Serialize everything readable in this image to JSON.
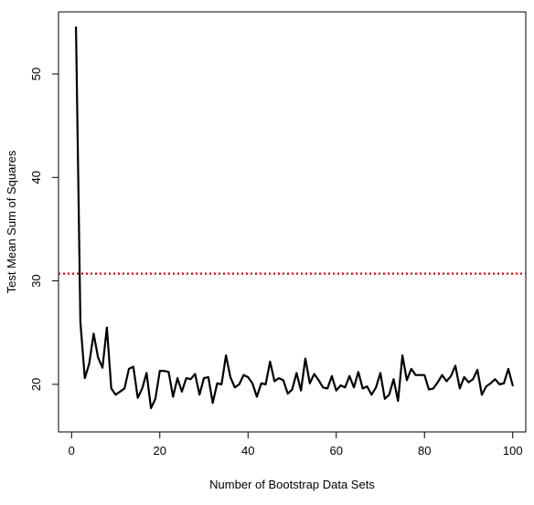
{
  "chart_data": {
    "type": "line",
    "title": "",
    "xlabel": "Number of Bootstrap Data Sets",
    "ylabel": "Test Mean Sum of Squares",
    "xlim": [
      -2.96,
      102.96
    ],
    "ylim": [
      15.4,
      56.0
    ],
    "xticks": [
      0,
      20,
      40,
      60,
      80,
      100
    ],
    "yticks": [
      20,
      30,
      40,
      50
    ],
    "grid": false,
    "legend": "none",
    "reference_line": {
      "y": 30.7,
      "style": "dotted",
      "color": "#dd0000"
    },
    "series": [
      {
        "color": "#000000",
        "x": [
          1,
          2,
          3,
          4,
          5,
          6,
          7,
          8,
          9,
          10,
          11,
          12,
          13,
          14,
          15,
          16,
          17,
          18,
          19,
          20,
          21,
          22,
          23,
          24,
          25,
          26,
          27,
          28,
          29,
          30,
          31,
          32,
          33,
          34,
          35,
          36,
          37,
          38,
          39,
          40,
          41,
          42,
          43,
          44,
          45,
          46,
          47,
          48,
          49,
          50,
          51,
          52,
          53,
          54,
          55,
          56,
          57,
          58,
          59,
          60,
          61,
          62,
          63,
          64,
          65,
          66,
          67,
          68,
          69,
          70,
          71,
          72,
          73,
          74,
          75,
          76,
          77,
          78,
          79,
          80,
          81,
          82,
          83,
          84,
          85,
          86,
          87,
          88,
          89,
          90,
          91,
          92,
          93,
          94,
          95,
          96,
          97,
          98,
          99,
          100
        ],
        "values": [
          54.5,
          26.0,
          20.6,
          22.0,
          24.9,
          22.6,
          21.6,
          25.5,
          19.6,
          19.0,
          19.3,
          19.6,
          21.5,
          21.7,
          18.7,
          19.6,
          21.1,
          17.7,
          18.6,
          21.3,
          21.3,
          21.2,
          18.8,
          20.6,
          19.3,
          20.6,
          20.5,
          21.0,
          19.0,
          20.6,
          20.7,
          18.2,
          20.1,
          20.0,
          22.8,
          20.7,
          19.7,
          20.0,
          20.9,
          20.7,
          20.1,
          18.8,
          20.1,
          20.0,
          22.2,
          20.3,
          20.6,
          20.4,
          19.1,
          19.5,
          21.1,
          19.4,
          22.5,
          20.1,
          21.0,
          20.4,
          19.7,
          19.6,
          20.8,
          19.4,
          19.9,
          19.7,
          20.8,
          19.7,
          21.2,
          19.6,
          19.8,
          19.0,
          19.7,
          21.1,
          18.6,
          19.0,
          20.5,
          18.4,
          22.8,
          20.4,
          21.5,
          20.9,
          20.9,
          20.9,
          19.5,
          19.6,
          20.2,
          20.9,
          20.3,
          20.8,
          21.8,
          19.6,
          20.7,
          20.2,
          20.5,
          21.4,
          19.0,
          19.8,
          20.1,
          20.5,
          20.0,
          20.1,
          21.5,
          19.9
        ]
      }
    ]
  }
}
